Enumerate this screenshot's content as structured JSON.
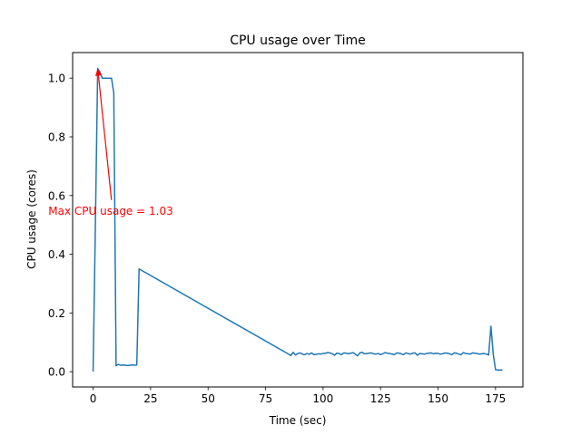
{
  "chart_data": {
    "type": "line",
    "title": "CPU usage over Time",
    "xlabel": "Time (sec)",
    "ylabel": "CPU usage (cores)",
    "xlim": [
      -8.9,
      186.9
    ],
    "ylim": [
      -0.052,
      1.087
    ],
    "xticks": [
      0,
      25,
      50,
      75,
      100,
      125,
      150,
      175
    ],
    "yticks": [
      0.0,
      0.2,
      0.4,
      0.6,
      0.8,
      1.0
    ],
    "grid": false,
    "line_color": "#1f77b4",
    "annotation": {
      "text": "Max CPU usage = 1.03",
      "color": "#ff0000",
      "point": [
        2,
        1.033
      ],
      "text_at": [
        8,
        0.585
      ]
    },
    "series": [
      {
        "x": [
          0,
          1,
          2,
          3,
          4,
          5,
          6,
          7,
          8,
          9,
          10,
          11,
          12,
          13,
          14,
          15,
          16,
          17,
          18,
          19,
          20,
          85,
          86,
          87,
          88,
          89,
          90,
          91,
          92,
          93,
          94,
          95,
          96,
          97,
          98,
          99,
          100,
          101,
          102,
          103,
          104,
          105,
          106,
          107,
          108,
          109,
          110,
          111,
          112,
          113,
          114,
          115,
          116,
          117,
          118,
          119,
          120,
          121,
          122,
          123,
          124,
          125,
          126,
          127,
          128,
          129,
          130,
          131,
          132,
          133,
          134,
          135,
          136,
          137,
          138,
          139,
          140,
          141,
          142,
          143,
          144,
          145,
          146,
          147,
          148,
          149,
          150,
          151,
          152,
          153,
          154,
          155,
          156,
          157,
          158,
          159,
          160,
          161,
          162,
          163,
          164,
          165,
          166,
          167,
          168,
          169,
          170,
          171,
          172,
          173,
          174,
          175,
          176,
          177,
          178
        ],
        "y": [
          0.0,
          0.5,
          1.033,
          1.02,
          1.0,
          1.0,
          1.0,
          1.0,
          1.0,
          0.95,
          0.02,
          0.025,
          0.022,
          0.023,
          0.022,
          0.021,
          0.022,
          0.023,
          0.022,
          0.023,
          0.35,
          0.06,
          0.055,
          0.066,
          0.057,
          0.062,
          0.064,
          0.06,
          0.058,
          0.062,
          0.059,
          0.064,
          0.058,
          0.059,
          0.061,
          0.06,
          0.062,
          0.063,
          0.065,
          0.064,
          0.061,
          0.056,
          0.063,
          0.062,
          0.058,
          0.064,
          0.063,
          0.061,
          0.063,
          0.065,
          0.06,
          0.054,
          0.064,
          0.066,
          0.061,
          0.062,
          0.063,
          0.064,
          0.061,
          0.06,
          0.062,
          0.058,
          0.061,
          0.065,
          0.063,
          0.062,
          0.06,
          0.058,
          0.064,
          0.063,
          0.061,
          0.058,
          0.064,
          0.062,
          0.06,
          0.063,
          0.064,
          0.056,
          0.062,
          0.061,
          0.06,
          0.062,
          0.063,
          0.064,
          0.061,
          0.063,
          0.062,
          0.06,
          0.061,
          0.064,
          0.063,
          0.061,
          0.058,
          0.064,
          0.063,
          0.06,
          0.058,
          0.065,
          0.062,
          0.061,
          0.06,
          0.064,
          0.063,
          0.062,
          0.06,
          0.061,
          0.062,
          0.06,
          0.057,
          0.155,
          0.06,
          0.007,
          0.006,
          0.006,
          0.006
        ]
      }
    ]
  }
}
